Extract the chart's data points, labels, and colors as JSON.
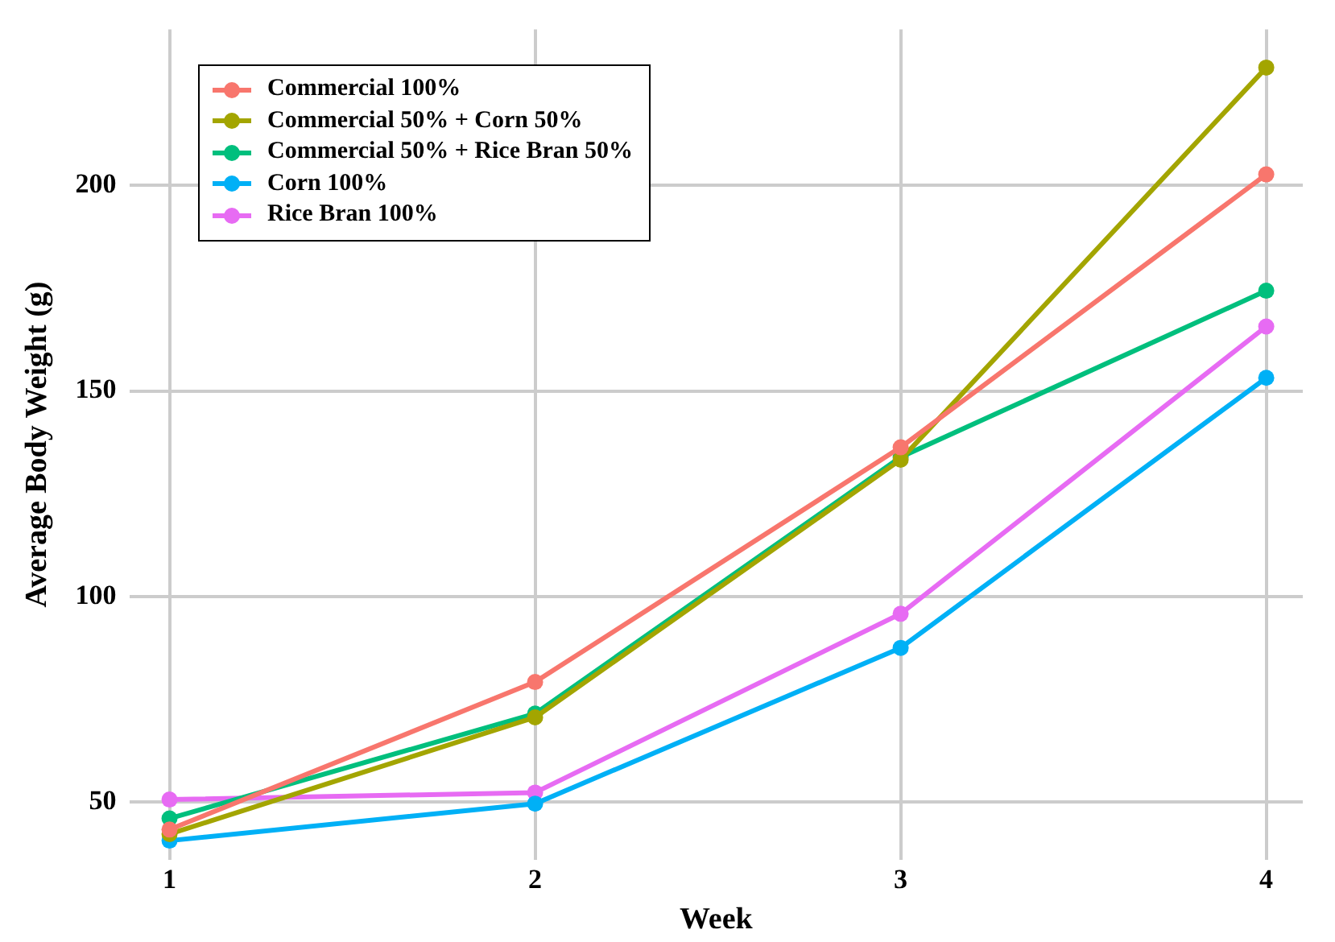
{
  "chart_data": {
    "type": "line",
    "xlabel": "Week",
    "ylabel": "Average Body Weight (g)",
    "x": [
      1,
      2,
      3,
      4
    ],
    "series": [
      {
        "name": "Commercial 100%",
        "color": "#f8766d",
        "values": [
          43.3,
          79.2,
          136.3,
          202.7
        ]
      },
      {
        "name": "Commercial 50% + Corn 50%",
        "color": "#a3a500",
        "values": [
          42.2,
          70.6,
          133.3,
          228.7
        ]
      },
      {
        "name": "Commercial 50% + Rice Bran 50%",
        "color": "#00bf7d",
        "values": [
          46,
          71.5,
          133.9,
          174.4
        ]
      },
      {
        "name": "Corn 100%",
        "color": "#00b0f6",
        "values": [
          40.6,
          49.6,
          87.5,
          153.2
        ]
      },
      {
        "name": "Rice Bran 100%",
        "color": "#e76bf3",
        "values": [
          50.6,
          52.3,
          95.8,
          165.7
        ]
      }
    ],
    "xlim": [
      0.89,
      4.1
    ],
    "xticks": [
      1,
      2,
      3,
      4
    ],
    "ylim": [
      36,
      238
    ],
    "yticks": [
      50,
      100,
      150,
      200
    ],
    "grid": true,
    "legend": "top left",
    "marker": "circle",
    "line_style": "solid"
  }
}
